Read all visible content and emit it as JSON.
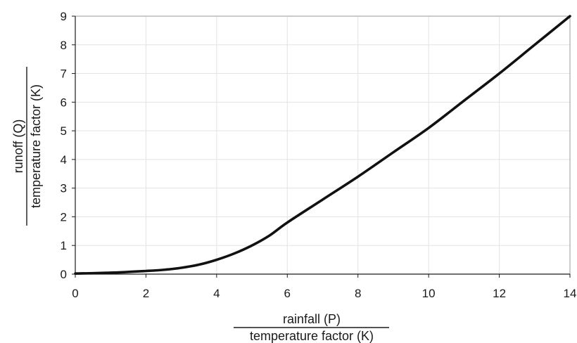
{
  "chart_data": {
    "type": "line",
    "xlabel": {
      "numerator": "rainfall (P)",
      "denominator": "temperature factor (K)"
    },
    "ylabel": {
      "numerator": "runoff (Q)",
      "denominator": "temperature factor (K)"
    },
    "xlim": [
      0,
      14
    ],
    "ylim": [
      0,
      9
    ],
    "x_ticks": [
      0,
      2,
      4,
      6,
      8,
      10,
      12,
      14
    ],
    "y_ticks": [
      0,
      1,
      2,
      3,
      4,
      5,
      6,
      7,
      8,
      9
    ],
    "grid": true,
    "series": [
      {
        "color": "#111111",
        "x": [
          0,
          1,
          2,
          2.5,
          3,
          3.5,
          4,
          4.5,
          5,
          5.5,
          6,
          7,
          8,
          9,
          10,
          11,
          12,
          13,
          14
        ],
        "y": [
          0.02,
          0.05,
          0.11,
          0.15,
          0.22,
          0.33,
          0.5,
          0.72,
          1.0,
          1.35,
          1.8,
          2.6,
          3.4,
          4.25,
          5.1,
          6.05,
          7.0,
          8.0,
          9.0
        ]
      }
    ]
  }
}
